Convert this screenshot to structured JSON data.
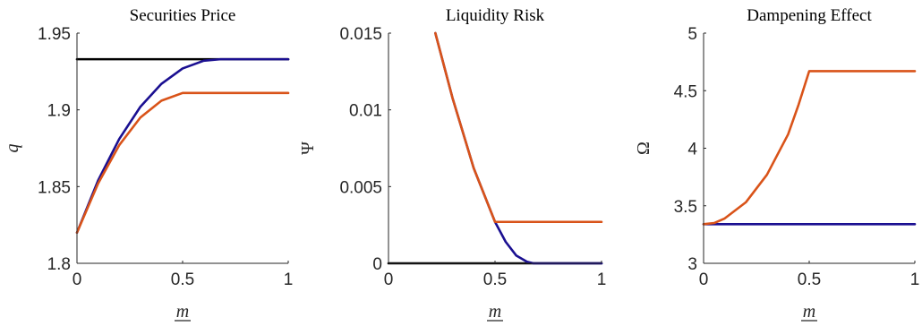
{
  "chart_data": [
    {
      "type": "line",
      "title": "Securities Price",
      "xlabel": "m",
      "xlabel_underlined": true,
      "ylabel": "q",
      "xlim": [
        0,
        1
      ],
      "ylim": [
        1.8,
        1.95
      ],
      "xticks": [
        0,
        0.5,
        1
      ],
      "xtick_labels": [
        "0",
        "0.5",
        "1"
      ],
      "yticks": [
        1.8,
        1.85,
        1.9,
        1.95
      ],
      "ytick_labels": [
        "1.8",
        "1.85",
        "1.9",
        "1.95"
      ],
      "grid": false,
      "series": [
        {
          "color": "#000000",
          "x": [
            0,
            0.25,
            0.5,
            0.75,
            1
          ],
          "y": [
            1.933,
            1.933,
            1.933,
            1.933,
            1.933
          ]
        },
        {
          "color": "#1a0f91",
          "x": [
            0,
            0.1,
            0.2,
            0.3,
            0.4,
            0.5,
            0.6,
            0.68,
            0.8,
            0.9,
            1
          ],
          "y": [
            1.82,
            1.854,
            1.881,
            1.902,
            1.917,
            1.927,
            1.932,
            1.933,
            1.933,
            1.933,
            1.933
          ]
        },
        {
          "color": "#d95319",
          "x": [
            0,
            0.1,
            0.2,
            0.3,
            0.4,
            0.5,
            0.6,
            0.7,
            0.8,
            0.9,
            1
          ],
          "y": [
            1.82,
            1.852,
            1.877,
            1.895,
            1.906,
            1.911,
            1.911,
            1.911,
            1.911,
            1.911,
            1.911
          ]
        }
      ]
    },
    {
      "type": "line",
      "title": "Liquidity Risk",
      "xlabel": "m",
      "xlabel_underlined": true,
      "ylabel": "Ψ",
      "xlim": [
        0,
        1
      ],
      "ylim": [
        0,
        0.015
      ],
      "xticks": [
        0,
        0.5,
        1
      ],
      "xtick_labels": [
        "0",
        "0.5",
        "1"
      ],
      "yticks": [
        0,
        0.005,
        0.01,
        0.015
      ],
      "ytick_labels": [
        "0",
        "0.005",
        "0.01",
        "0.015"
      ],
      "grid": false,
      "series": [
        {
          "color": "#000000",
          "x": [
            0,
            0.25,
            0.5,
            0.75,
            1
          ],
          "y": [
            0,
            0,
            0,
            0,
            0
          ]
        },
        {
          "color": "#1a0f91",
          "x": [
            0.22,
            0.3,
            0.4,
            0.5,
            0.55,
            0.6,
            0.65,
            0.68,
            0.8,
            0.9,
            1
          ],
          "y": [
            0.015,
            0.0108,
            0.0062,
            0.0027,
            0.0014,
            0.0005,
            0.0001,
            0,
            0,
            0,
            0
          ]
        },
        {
          "color": "#d95319",
          "x": [
            0.22,
            0.3,
            0.4,
            0.5,
            0.6,
            0.7,
            0.8,
            0.9,
            1
          ],
          "y": [
            0.015,
            0.0108,
            0.0062,
            0.0027,
            0.0027,
            0.0027,
            0.0027,
            0.0027,
            0.0027
          ]
        }
      ]
    },
    {
      "type": "line",
      "title": "Dampening Effect",
      "xlabel": "m",
      "xlabel_underlined": true,
      "ylabel": "Ω",
      "xlim": [
        0,
        1
      ],
      "ylim": [
        3,
        5
      ],
      "xticks": [
        0,
        0.5,
        1
      ],
      "xtick_labels": [
        "0",
        "0.5",
        "1"
      ],
      "yticks": [
        3,
        3.5,
        4,
        4.5,
        5
      ],
      "ytick_labels": [
        "3",
        "3.5",
        "4",
        "4.5",
        "5"
      ],
      "grid": false,
      "series": [
        {
          "color": "#1a0f91",
          "x": [
            0,
            0.25,
            0.5,
            0.75,
            1
          ],
          "y": [
            3.34,
            3.34,
            3.34,
            3.34,
            3.34
          ]
        },
        {
          "color": "#d95319",
          "x": [
            0,
            0.05,
            0.1,
            0.2,
            0.3,
            0.4,
            0.45,
            0.5,
            0.6,
            0.7,
            0.8,
            0.9,
            1
          ],
          "y": [
            3.34,
            3.35,
            3.39,
            3.53,
            3.77,
            4.12,
            4.38,
            4.67,
            4.67,
            4.67,
            4.67,
            4.67,
            4.67
          ]
        }
      ]
    }
  ]
}
